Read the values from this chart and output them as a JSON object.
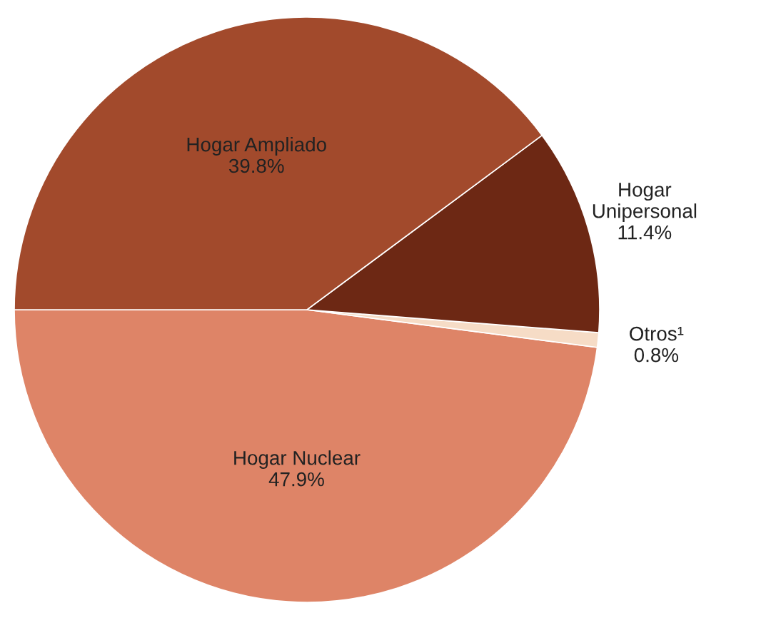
{
  "chart_data": {
    "type": "pie",
    "categories": [
      "Hogar Nuclear",
      "Otros¹",
      "Hogar\nUnipersonal",
      "Hogar Ampliado"
    ],
    "values": [
      47.9,
      0.8,
      11.4,
      39.8
    ],
    "value_labels": [
      "47.9%",
      "0.8%",
      "11.4%",
      "39.8%"
    ],
    "colors": [
      "#de8467",
      "#f6dcc6",
      "#6d2814",
      "#a24a2c"
    ]
  }
}
